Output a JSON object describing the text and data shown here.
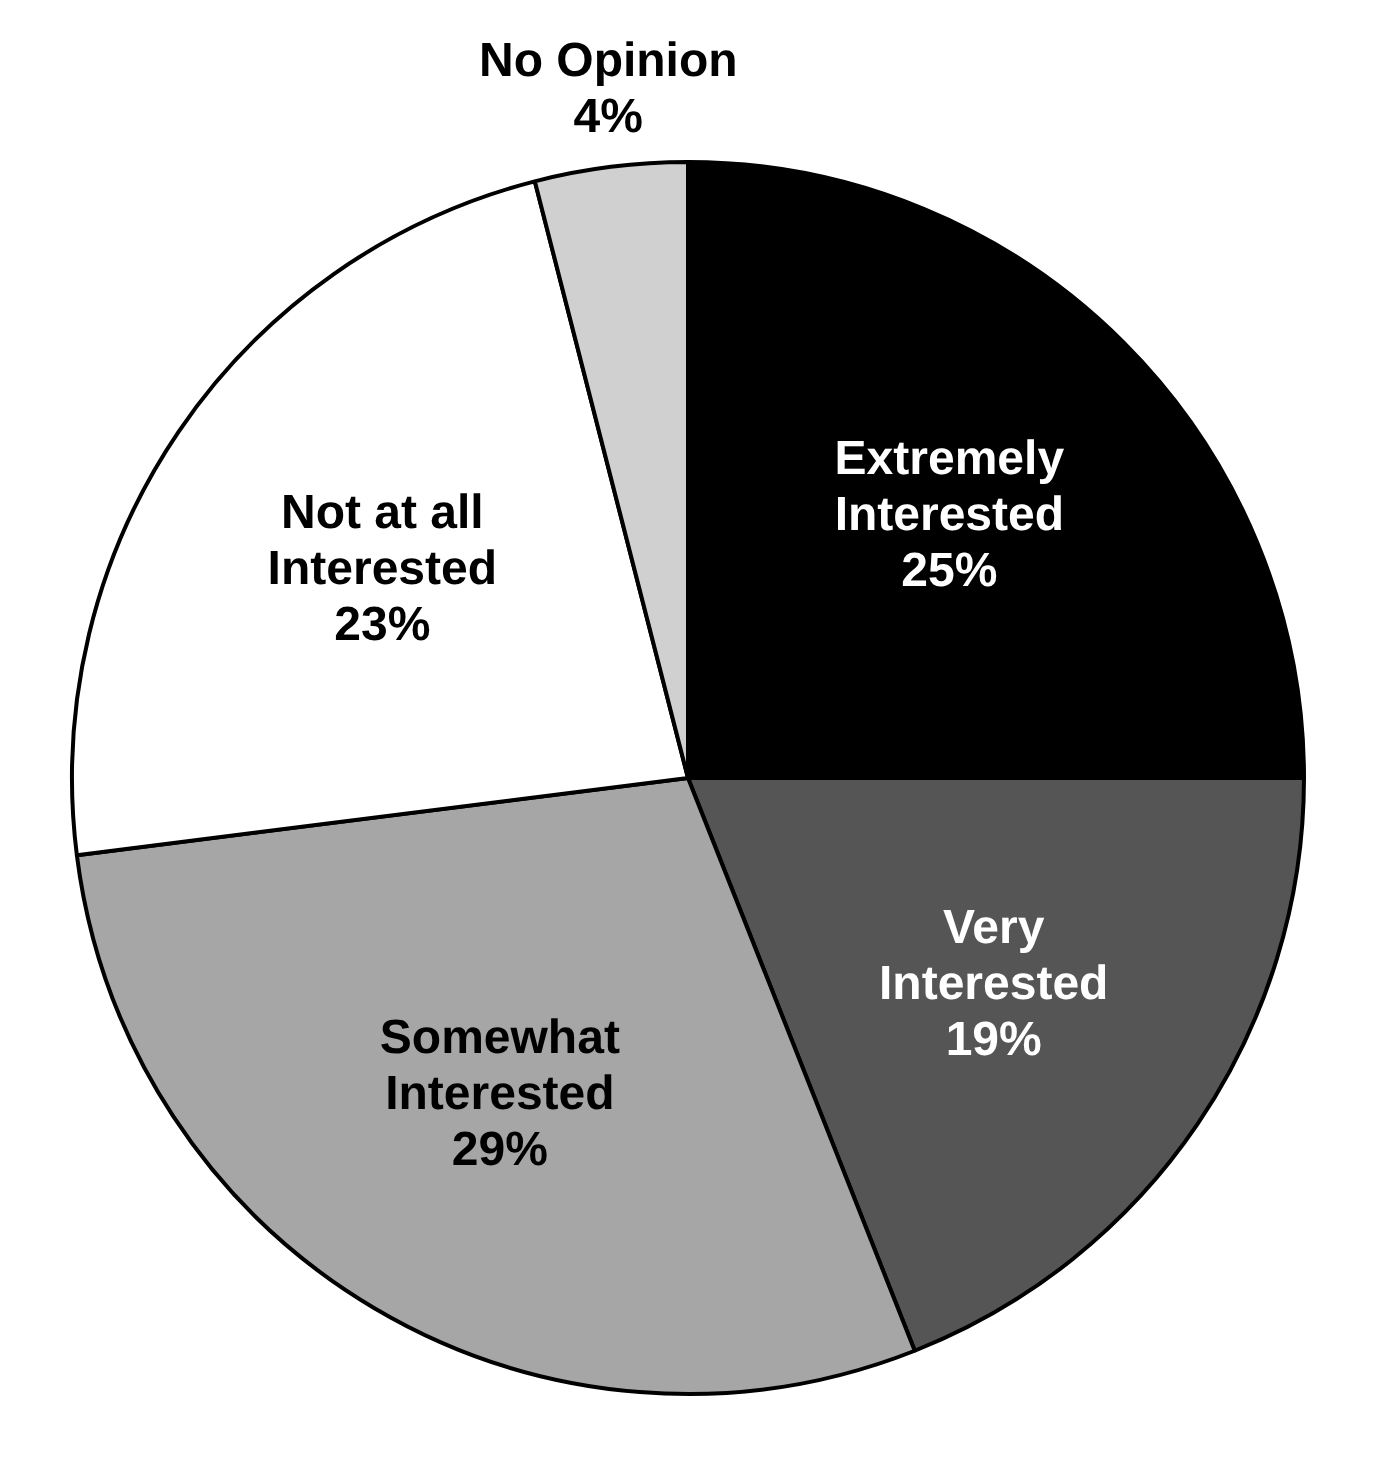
{
  "chart_data": {
    "type": "pie",
    "categories": [
      "Extremely Interested",
      "Very Interested",
      "Somewhat Interested",
      "Not at all Interested",
      "No Opinion"
    ],
    "values": [
      25,
      19,
      29,
      23,
      4
    ],
    "colors": [
      "#000000",
      "#555555",
      "#a6a6a6",
      "#ffffff",
      "#d0d0d0"
    ],
    "value_labels": [
      "25%",
      "19%",
      "29%",
      "23%",
      "4%"
    ],
    "legend": false
  }
}
